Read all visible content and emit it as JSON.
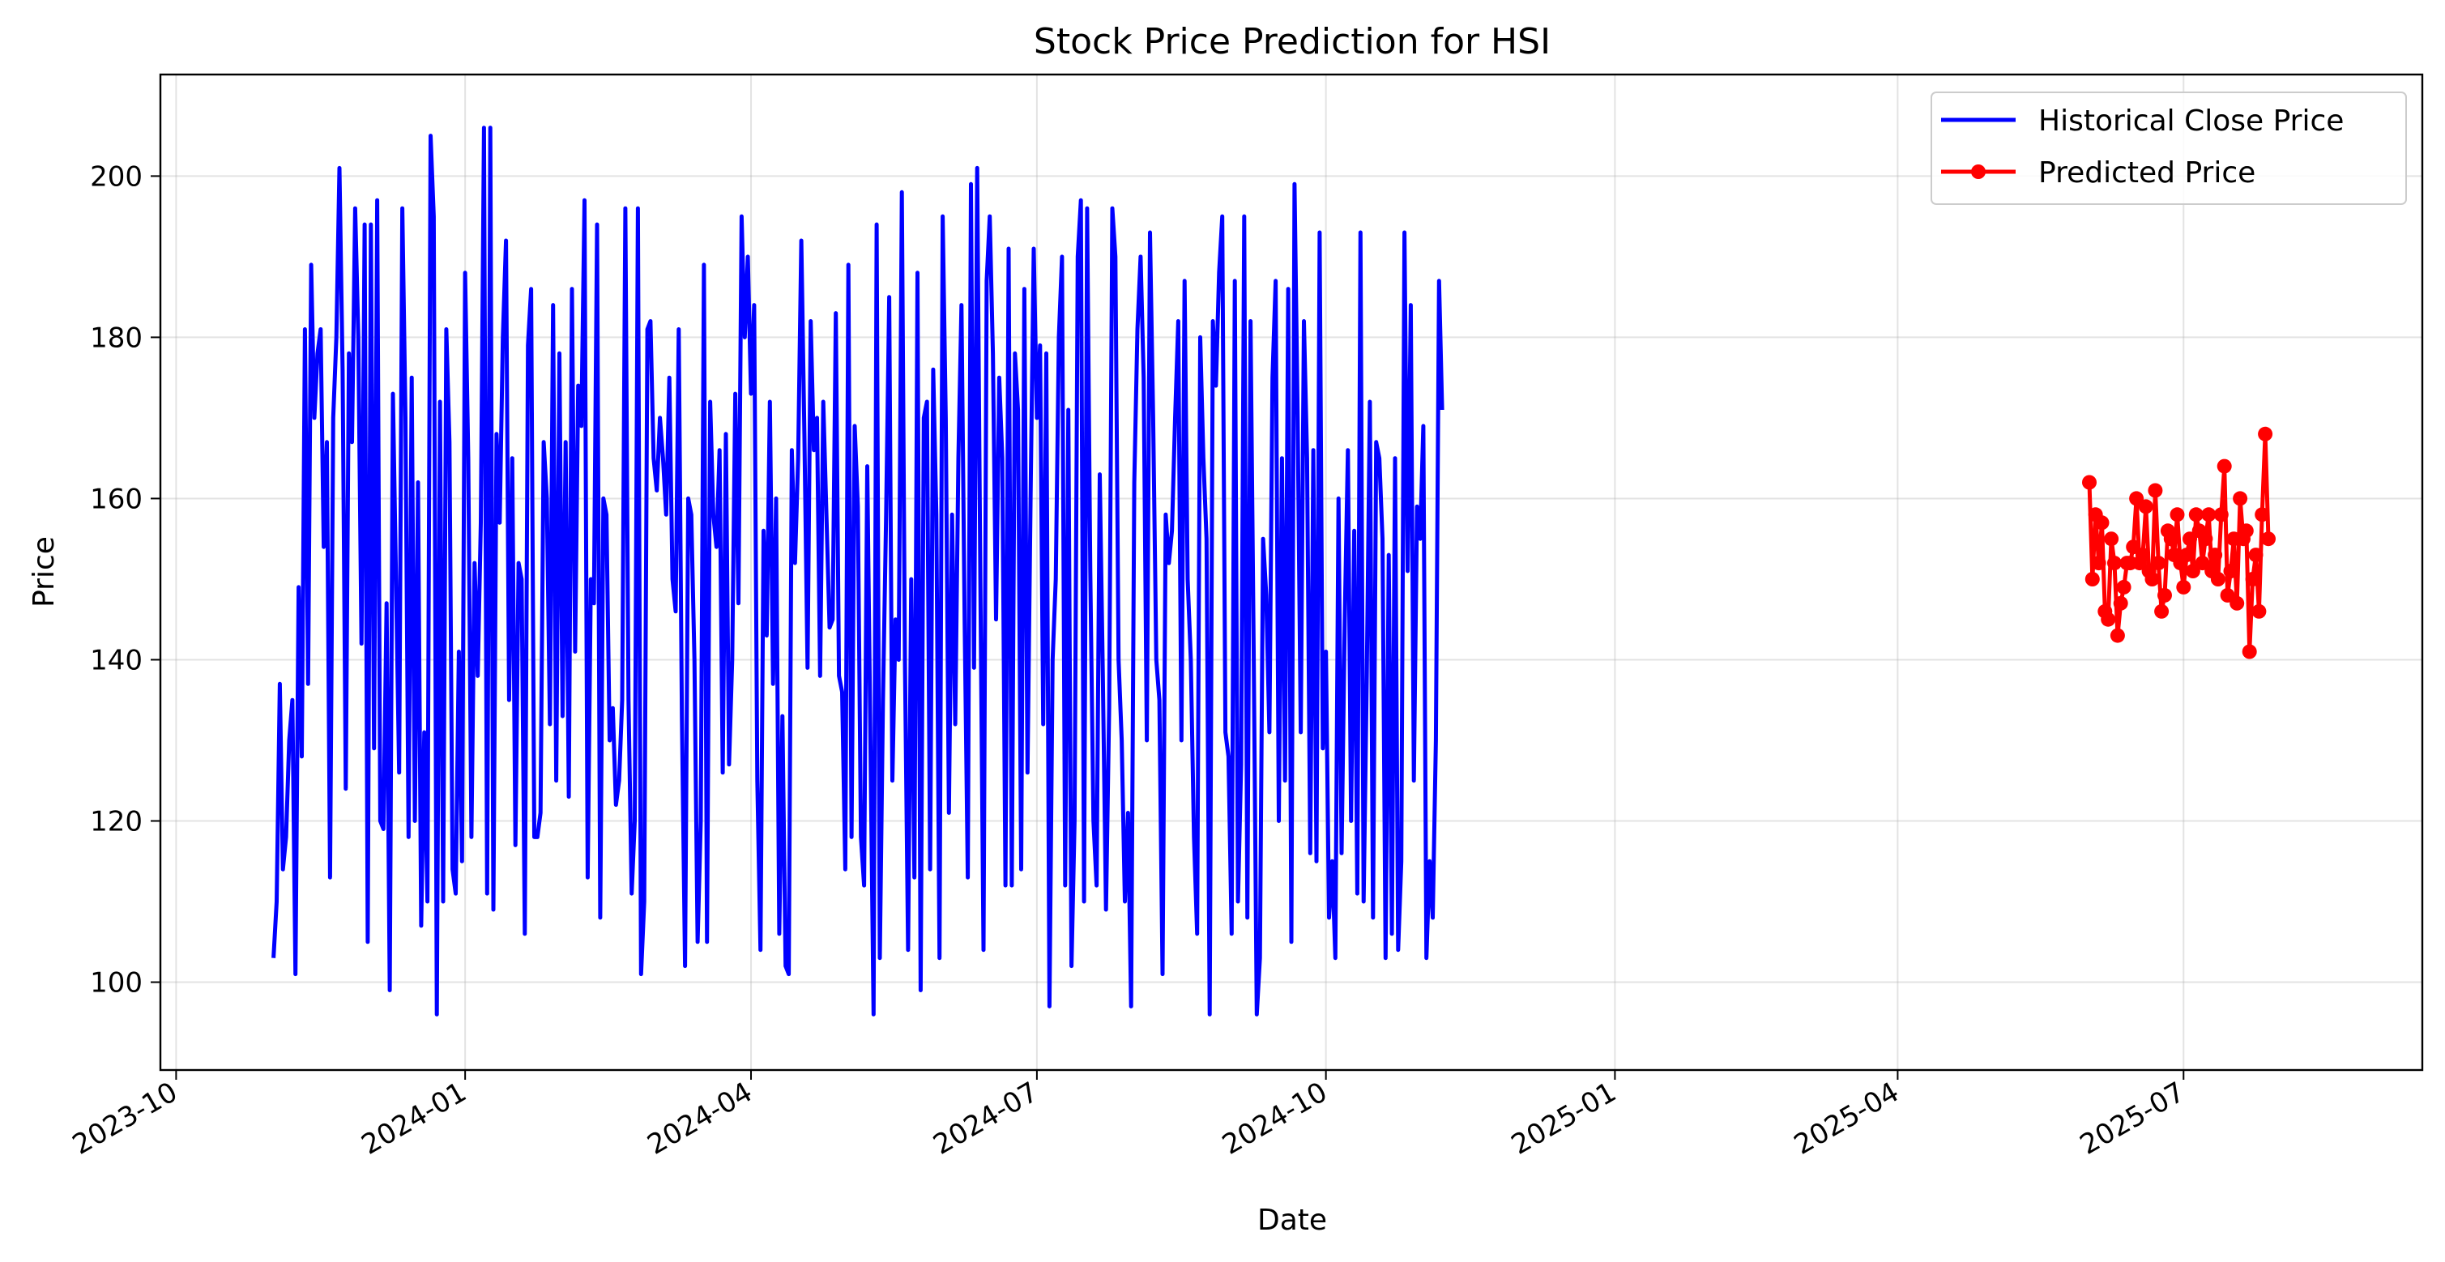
{
  "chart_data": {
    "type": "line",
    "title": "Stock Price Prediction for HSI",
    "xlabel": "Date",
    "ylabel": "Price",
    "x_axis_type": "date",
    "xlim": [
      "2023-09-26",
      "2025-09-15"
    ],
    "ylim": [
      89.1,
      212.6
    ],
    "x_ticks": [
      "2023-10",
      "2024-01",
      "2024-04",
      "2024-07",
      "2024-10",
      "2025-01",
      "2025-04",
      "2025-07"
    ],
    "y_ticks": [
      100,
      120,
      140,
      160,
      180,
      200
    ],
    "grid": true,
    "legend_position": "top-right",
    "series": [
      {
        "name": "Historical Close Price",
        "color": "#0000ff",
        "marker": "none",
        "start_date": "2023-11-01",
        "step_days": 1,
        "values": [
          103,
          110,
          137,
          114,
          118,
          130,
          135,
          101,
          149,
          128,
          181,
          137,
          189,
          170,
          178,
          181,
          154,
          167,
          113,
          170,
          180,
          201,
          176,
          124,
          178,
          167,
          196,
          180,
          142,
          194,
          105,
          194,
          129,
          197,
          120,
          119,
          147,
          99,
          173,
          150,
          126,
          196,
          170,
          118,
          175,
          120,
          162,
          107,
          131,
          110,
          205,
          195,
          96,
          172,
          110,
          181,
          167,
          114,
          111,
          141,
          115,
          188,
          165,
          118,
          152,
          138,
          157,
          206,
          111,
          206,
          109,
          168,
          157,
          180,
          192,
          135,
          165,
          117,
          152,
          150,
          106,
          179,
          186,
          118,
          118,
          121,
          167,
          160,
          132,
          184,
          125,
          178,
          133,
          167,
          123,
          186,
          141,
          174,
          169,
          197,
          113,
          150,
          147,
          194,
          108,
          160,
          158,
          130,
          134,
          122,
          125,
          135,
          196,
          135,
          111,
          120,
          196,
          101,
          110,
          181,
          182,
          165,
          161,
          170,
          165,
          158,
          175,
          150,
          146,
          181,
          133,
          102,
          160,
          158,
          140,
          105,
          120,
          189,
          105,
          172,
          158,
          154,
          166,
          126,
          168,
          127,
          140,
          173,
          147,
          195,
          180,
          190,
          173,
          184,
          125,
          104,
          156,
          143,
          172,
          137,
          160,
          106,
          133,
          102,
          101,
          166,
          152,
          165,
          192,
          168,
          139,
          182,
          166,
          170,
          138,
          172,
          158,
          144,
          145,
          183,
          138,
          136,
          114,
          189,
          118,
          169,
          159,
          118,
          112,
          164,
          130,
          96,
          194,
          103,
          135,
          158,
          185,
          125,
          145,
          140,
          198,
          140,
          104,
          150,
          113,
          188,
          99,
          170,
          172,
          114,
          176,
          158,
          103,
          195,
          170,
          121,
          158,
          132,
          165,
          184,
          145,
          113,
          199,
          139,
          201,
          150,
          104,
          187,
          195,
          178,
          145,
          175,
          165,
          112,
          191,
          112,
          178,
          171,
          114,
          186,
          126,
          160,
          191,
          170,
          179,
          132,
          178,
          97,
          140,
          150,
          180,
          190,
          112,
          171,
          102,
          120,
          190,
          197,
          110,
          196,
          151,
          120,
          112,
          163,
          138,
          109,
          134,
          196,
          190,
          140,
          130,
          110,
          121,
          97,
          162,
          181,
          190,
          175,
          130,
          193,
          170,
          140,
          135,
          101,
          158,
          152,
          156,
          170,
          182,
          130,
          187,
          150,
          140,
          118,
          106,
          180,
          165,
          155,
          96,
          182,
          174,
          188,
          195,
          131,
          128,
          106,
          187,
          110,
          127,
          195,
          108,
          182,
          141,
          96,
          103,
          155,
          148,
          131,
          175,
          187,
          120,
          165,
          125,
          186,
          105,
          199,
          170,
          131,
          182,
          165,
          116,
          166,
          115,
          193,
          129,
          141,
          108,
          115,
          103,
          160,
          116,
          145,
          166,
          120,
          156,
          111,
          193,
          110,
          138,
          172,
          108,
          167,
          165,
          155,
          103,
          153,
          106,
          165,
          104,
          115,
          193,
          151,
          184,
          125,
          159,
          155,
          169,
          103,
          115,
          108,
          130,
          187,
          171
        ]
      },
      {
        "name": "Predicted Price",
        "color": "#ff0000",
        "marker": "o",
        "start_date": "2025-06-01",
        "step_days": 1,
        "values": [
          162,
          150,
          158,
          152,
          157,
          146,
          145,
          155,
          152,
          143,
          147,
          149,
          152,
          152,
          154,
          160,
          152,
          153,
          159,
          151,
          150,
          161,
          152,
          146,
          148,
          156,
          155,
          153,
          158,
          152,
          149,
          153,
          155,
          151,
          158,
          156,
          152,
          155,
          158,
          151,
          153,
          150,
          158,
          164,
          148,
          151,
          155,
          147,
          160,
          155,
          156,
          141,
          150,
          153,
          146,
          158,
          168,
          155
        ]
      }
    ]
  }
}
